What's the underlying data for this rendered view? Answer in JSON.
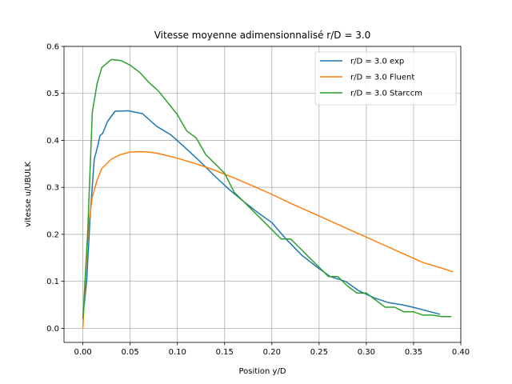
{
  "chart_data": {
    "type": "line",
    "title": "Vitesse moyenne adimensionnalisé r/D = 3.0",
    "xlabel": "Position y/D",
    "ylabel": "vitesse u/UBULK",
    "xlim": [
      -0.02,
      0.4
    ],
    "ylim": [
      -0.03,
      0.6
    ],
    "xticks": [
      0.0,
      0.05,
      0.1,
      0.15,
      0.2,
      0.25,
      0.3,
      0.35,
      0.4
    ],
    "xtick_labels": [
      "0.00",
      "0.05",
      "0.10",
      "0.15",
      "0.20",
      "0.25",
      "0.30",
      "0.35",
      "0.40"
    ],
    "yticks": [
      0.0,
      0.1,
      0.2,
      0.3,
      0.4,
      0.5,
      0.6
    ],
    "ytick_labels": [
      "0.0",
      "0.1",
      "0.2",
      "0.3",
      "0.4",
      "0.5",
      "0.6"
    ],
    "grid": true,
    "legend_position": "top-right",
    "series": [
      {
        "name": "r/D = 3.0 exp",
        "color": "#1f77b4",
        "x": [
          0.0,
          0.004,
          0.008,
          0.012,
          0.016,
          0.018,
          0.021,
          0.026,
          0.034,
          0.048,
          0.063,
          0.078,
          0.093,
          0.108,
          0.124,
          0.139,
          0.155,
          0.17,
          0.186,
          0.2,
          0.215,
          0.232,
          0.248,
          0.262,
          0.278,
          0.292,
          0.308,
          0.323,
          0.338,
          0.353,
          0.368,
          0.378
        ],
        "y": [
          0.02,
          0.1,
          0.25,
          0.36,
          0.39,
          0.41,
          0.415,
          0.44,
          0.462,
          0.463,
          0.457,
          0.43,
          0.412,
          0.385,
          0.355,
          0.325,
          0.295,
          0.27,
          0.245,
          0.225,
          0.19,
          0.155,
          0.13,
          0.11,
          0.1,
          0.08,
          0.065,
          0.055,
          0.05,
          0.043,
          0.035,
          0.03
        ]
      },
      {
        "name": "r/D = 3.0 Fluent",
        "color": "#ff7f0e",
        "x": [
          0.0,
          0.003,
          0.006,
          0.01,
          0.015,
          0.02,
          0.03,
          0.04,
          0.05,
          0.06,
          0.07,
          0.08,
          0.1,
          0.12,
          0.14,
          0.16,
          0.18,
          0.2,
          0.22,
          0.24,
          0.26,
          0.28,
          0.3,
          0.32,
          0.34,
          0.36,
          0.38,
          0.392
        ],
        "y": [
          0.0,
          0.12,
          0.22,
          0.28,
          0.315,
          0.34,
          0.36,
          0.37,
          0.375,
          0.376,
          0.375,
          0.372,
          0.362,
          0.35,
          0.336,
          0.32,
          0.303,
          0.285,
          0.266,
          0.248,
          0.23,
          0.212,
          0.194,
          0.176,
          0.158,
          0.14,
          0.128,
          0.12
        ]
      },
      {
        "name": "r/D = 3.0 Starccm",
        "color": "#2ca02c",
        "x": [
          0.0,
          0.005,
          0.01,
          0.015,
          0.02,
          0.03,
          0.04,
          0.05,
          0.06,
          0.07,
          0.08,
          0.09,
          0.1,
          0.11,
          0.12,
          0.13,
          0.14,
          0.15,
          0.16,
          0.17,
          0.18,
          0.19,
          0.2,
          0.21,
          0.22,
          0.23,
          0.24,
          0.25,
          0.26,
          0.27,
          0.28,
          0.29,
          0.3,
          0.31,
          0.32,
          0.33,
          0.34,
          0.35,
          0.36,
          0.37,
          0.38,
          0.39
        ],
        "y": [
          0.02,
          0.2,
          0.46,
          0.52,
          0.555,
          0.572,
          0.57,
          0.56,
          0.545,
          0.523,
          0.505,
          0.48,
          0.455,
          0.42,
          0.405,
          0.37,
          0.35,
          0.33,
          0.29,
          0.27,
          0.25,
          0.23,
          0.21,
          0.19,
          0.19,
          0.17,
          0.15,
          0.13,
          0.11,
          0.11,
          0.09,
          0.075,
          0.075,
          0.06,
          0.045,
          0.045,
          0.035,
          0.035,
          0.028,
          0.028,
          0.025,
          0.025
        ]
      }
    ]
  }
}
